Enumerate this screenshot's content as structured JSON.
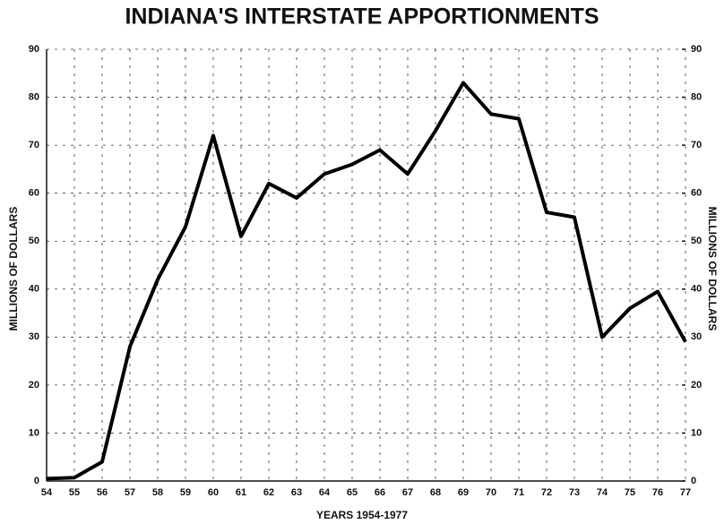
{
  "chart_data": {
    "type": "line",
    "title": "INDIANA'S INTERSTATE APPORTIONMENTS",
    "xlabel": "YEARS 1954-1977",
    "ylabel": "MILLIONS OF DOLLARS",
    "y2label": "MILLIONS OF DOLLARS",
    "categories": [
      "54",
      "55",
      "56",
      "57",
      "58",
      "59",
      "60",
      "61",
      "62",
      "63",
      "64",
      "65",
      "66",
      "67",
      "68",
      "69",
      "70",
      "71",
      "72",
      "73",
      "74",
      "75",
      "76",
      "77"
    ],
    "series": [
      {
        "name": "Interstate apportionments",
        "color": "#000000",
        "values": [
          0.5,
          0.7,
          4,
          28,
          42,
          53,
          72,
          51,
          62,
          59,
          64,
          66,
          69,
          64,
          73,
          83,
          76.5,
          75.5,
          56,
          55,
          30,
          36,
          39.5,
          29
        ]
      }
    ],
    "ylim": [
      0,
      90
    ],
    "yticks": [
      0,
      10,
      20,
      30,
      40,
      50,
      60,
      70,
      80,
      90
    ],
    "y2lim": [
      0,
      90
    ],
    "y2ticks": [
      0,
      10,
      20,
      30,
      40,
      50,
      60,
      70,
      80,
      90
    ],
    "grid": true
  }
}
